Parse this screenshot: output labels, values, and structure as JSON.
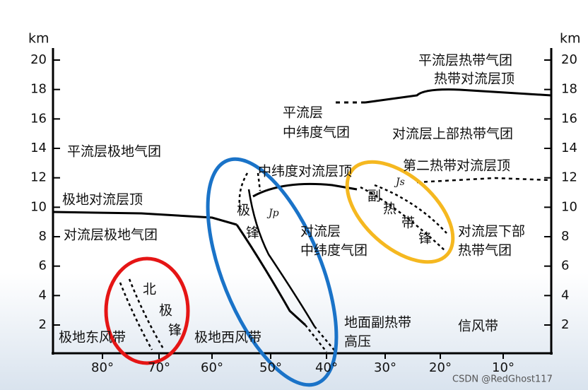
{
  "axes": {
    "unit_left": "km",
    "unit_right": "km",
    "yticks": [
      2,
      4,
      6,
      8,
      10,
      12,
      14,
      16,
      18,
      20
    ],
    "xticks": [
      "80°",
      "70°",
      "60°",
      "50°",
      "40°",
      "30°",
      "20°",
      "10°"
    ]
  },
  "labels": {
    "polar_stratosphere_air": "平流层极地气团",
    "polar_tropopause": "极地对流层顶",
    "polar_troposphere_air": "对流层极地气团",
    "polar_easterlies": "极地东风带",
    "polar_westerlies": "极地西风带",
    "arctic_front": [
      "北",
      "极",
      "锋"
    ],
    "polar_front": [
      "极",
      "锋"
    ],
    "jp": "Jp",
    "mid_tropopause": "中纬度对流层顶",
    "mid_troposphere_air": [
      "对流层",
      "中纬度气团"
    ],
    "mid_stratosphere_air": [
      "平流层",
      "中纬度气团"
    ],
    "subtropical_high": [
      "地面副热带",
      "高压"
    ],
    "subtropical_front": [
      "副",
      "热",
      "带",
      "锋"
    ],
    "js": "Js",
    "second_tropopause": "第二热带对流层顶",
    "upper_tropical_air": "对流层上部热带气团",
    "tropical_stratosphere": [
      "平流层热带气团",
      "热带对流层顶"
    ],
    "lower_tropical_air": [
      "对流层下部",
      "热带气团"
    ],
    "trade_winds": "信风带"
  },
  "watermark": "CSDN @RedGhost117"
}
